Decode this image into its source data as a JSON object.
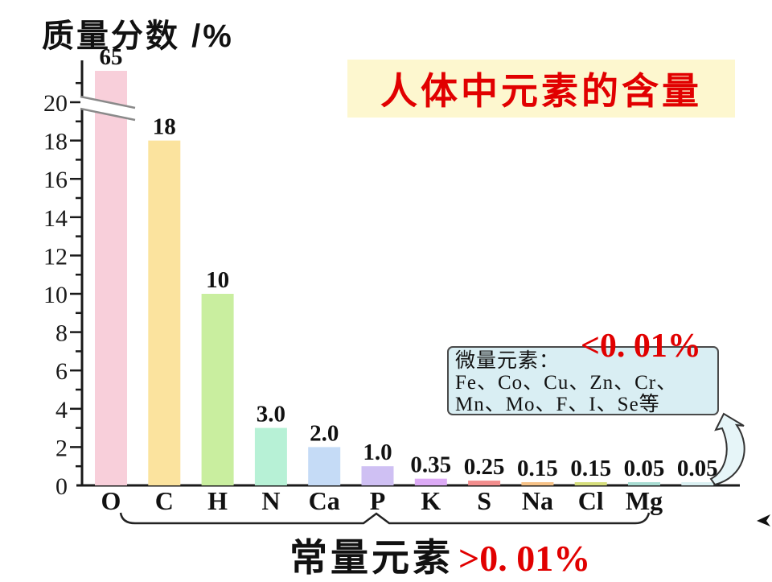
{
  "slide": {
    "ylabel": "质量分数 /%",
    "title": "人体中元素的含量",
    "trace_box": {
      "heading": "微量元素：",
      "line1": "Fe、Co、Cu、Zn、Cr、",
      "line2": "Mn、Mo、F、I、Se等"
    },
    "trace_threshold": "<0. 01%",
    "major_label": "常量元素",
    "major_threshold": ">0. 01%"
  },
  "colors": {
    "title_red": "#e10000",
    "banner_bg": "#fdf7cf",
    "trace_box_bg": "#d9eef3",
    "threshold_red": "#e10000",
    "axis": "#1a1a1a"
  },
  "chart_data": {
    "type": "bar",
    "title": "人体中元素的含量",
    "ylabel": "质量分数 /%",
    "xlabel": "",
    "ylim": [
      0,
      21
    ],
    "yticks": [
      0,
      2,
      4,
      6,
      8,
      10,
      12,
      14,
      16,
      18,
      20
    ],
    "grid": false,
    "legend": null,
    "axis_break": {
      "axis": "y",
      "between": [
        19,
        20
      ],
      "note": "O bar (65) exceeds axis top; break drawn across O bar"
    },
    "categories": [
      "O",
      "C",
      "H",
      "N",
      "Ca",
      "P",
      "K",
      "S",
      "Na",
      "Cl",
      "Mg",
      ""
    ],
    "values": [
      65,
      18,
      10,
      3.0,
      2.0,
      1.0,
      0.35,
      0.25,
      0.15,
      0.15,
      0.05,
      0.05
    ],
    "value_labels": [
      "65",
      "18",
      "10",
      "3.0",
      "2.0",
      "1.0",
      "0.35",
      "0.25",
      "0.15",
      "0.15",
      "0.05",
      "0.05"
    ],
    "bar_colors": [
      "#f8cfda",
      "#fbe39e",
      "#c9ee9f",
      "#b7f1d6",
      "#c5dbf6",
      "#cfc0f3",
      "#dcaaf5",
      "#f28d8d",
      "#f6c287",
      "#d6de7c",
      "#a8dcd2",
      "#daf0f2"
    ]
  }
}
